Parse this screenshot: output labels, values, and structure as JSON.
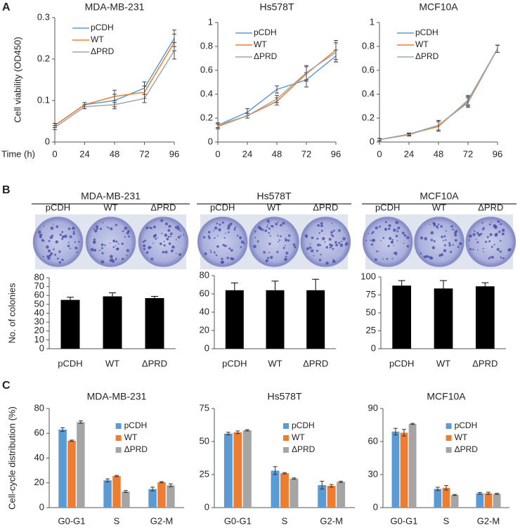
{
  "panel_labels": [
    "A",
    "B",
    "C"
  ],
  "colony_panels": [
    {
      "title": "MDA-MB-231",
      "labels": [
        "pCDH",
        "WT",
        "ΔPRD"
      ]
    },
    {
      "title": "Hs578T",
      "labels": [
        "pCDH",
        "WT",
        "ΔPRD"
      ]
    },
    {
      "title": "MCF10A",
      "labels": [
        "pCDH",
        "WT",
        "ΔPRD"
      ]
    }
  ],
  "chart_data": [
    {
      "type": "line",
      "title": "MDA-MB-231",
      "xlabel": "Time (h)",
      "ylabel": "Cell viability (OD450)",
      "x": [
        0,
        24,
        48,
        72,
        96
      ],
      "xlim": [
        0,
        96
      ],
      "xticks": [
        0,
        24,
        48,
        72,
        96
      ],
      "ylim": [
        0,
        0.3
      ],
      "yticks": [
        0,
        0.1,
        0.2,
        0.3
      ],
      "legend": "upper left",
      "series": [
        {
          "name": "pCDH",
          "color": "#5b9bd5",
          "values": [
            0.04,
            0.09,
            0.1,
            0.13,
            0.25
          ],
          "errors": [
            0.005,
            0.005,
            0.015,
            0.015,
            0.02
          ]
        },
        {
          "name": "WT",
          "color": "#ed7d31",
          "values": [
            0.04,
            0.09,
            0.11,
            0.12,
            0.24
          ],
          "errors": [
            0.005,
            0.005,
            0.015,
            0.015,
            0.02
          ]
        },
        {
          "name": "ΔPRD",
          "color": "#a5a5a5",
          "values": [
            0.035,
            0.085,
            0.09,
            0.105,
            0.22
          ],
          "errors": [
            0.005,
            0.005,
            0.01,
            0.01,
            0.02
          ]
        }
      ]
    },
    {
      "type": "line",
      "title": "Hs578T",
      "x": [
        0,
        24,
        48,
        72,
        96
      ],
      "xlim": [
        0,
        96
      ],
      "xticks": [
        0,
        24,
        48,
        72,
        96
      ],
      "ylim": [
        0,
        1
      ],
      "yticks": [
        0,
        0.2,
        0.4,
        0.6,
        0.8,
        1
      ],
      "legend": "upper left",
      "series": [
        {
          "name": "pCDH",
          "color": "#5b9bd5",
          "values": [
            0.14,
            0.25,
            0.44,
            0.52,
            0.72
          ],
          "errors": [
            0.02,
            0.03,
            0.03,
            0.06,
            0.05
          ]
        },
        {
          "name": "WT",
          "color": "#ed7d31",
          "values": [
            0.13,
            0.22,
            0.34,
            0.57,
            0.77
          ],
          "errors": [
            0.02,
            0.02,
            0.03,
            0.06,
            0.08
          ]
        },
        {
          "name": "ΔPRD",
          "color": "#a5a5a5",
          "values": [
            0.14,
            0.22,
            0.36,
            0.58,
            0.75
          ],
          "errors": [
            0.02,
            0.02,
            0.03,
            0.06,
            0.08
          ]
        }
      ]
    },
    {
      "type": "line",
      "title": "MCF10A",
      "x": [
        0,
        24,
        48,
        72,
        96
      ],
      "xlim": [
        0,
        96
      ],
      "xticks": [
        0,
        24,
        48,
        72,
        96
      ],
      "ylim": [
        0,
        1
      ],
      "yticks": [
        0,
        0.2,
        0.4,
        0.6,
        0.8,
        1
      ],
      "legend": "upper left",
      "series": [
        {
          "name": "pCDH",
          "color": "#5b9bd5",
          "values": [
            0.02,
            0.065,
            0.14,
            0.33,
            0.78
          ],
          "errors": [
            0.01,
            0.01,
            0.04,
            0.04,
            0.03
          ]
        },
        {
          "name": "WT",
          "color": "#ed7d31",
          "values": [
            0.02,
            0.065,
            0.13,
            0.35,
            0.78
          ],
          "errors": [
            0.01,
            0.01,
            0.04,
            0.04,
            0.03
          ]
        },
        {
          "name": "ΔPRD",
          "color": "#a5a5a5",
          "values": [
            0.02,
            0.06,
            0.14,
            0.34,
            0.78
          ],
          "errors": [
            0.01,
            0.01,
            0.04,
            0.04,
            0.03
          ]
        }
      ]
    },
    {
      "type": "bar",
      "ylabel": "No. of colonies",
      "categories": [
        "pCDH",
        "WT",
        "ΔPRD"
      ],
      "values": [
        55,
        59,
        57
      ],
      "errors": [
        3,
        4,
        2
      ],
      "color": "#000000",
      "ylim": [
        0,
        80
      ],
      "yticks": [
        0,
        10,
        20,
        30,
        40,
        50,
        60,
        70,
        80
      ]
    },
    {
      "type": "bar",
      "categories": [
        "pCDH",
        "WT",
        "ΔPRD"
      ],
      "values": [
        64,
        64,
        64
      ],
      "errors": [
        8,
        10,
        12
      ],
      "color": "#000000",
      "ylim": [
        0,
        80
      ],
      "yticks": [
        0,
        20,
        40,
        60,
        80
      ]
    },
    {
      "type": "bar",
      "categories": [
        "pCDH",
        "WT",
        "ΔPRD"
      ],
      "values": [
        88,
        84,
        87
      ],
      "errors": [
        7,
        11,
        5
      ],
      "color": "#000000",
      "ylim": [
        0,
        100
      ],
      "yticks": [
        0,
        25,
        50,
        75,
        100
      ]
    },
    {
      "type": "bar",
      "title": "MDA-MB-231",
      "ylabel": "Cell-cycle distribution (%)",
      "categories": [
        "G0-G1",
        "S",
        "G2-M"
      ],
      "ylim": [
        0,
        80
      ],
      "yticks": [
        0,
        20,
        40,
        60,
        80
      ],
      "legend": "upper right",
      "series": [
        {
          "name": "pCDH",
          "color": "#5b9bd5",
          "values": [
            63,
            22,
            15
          ],
          "errors": [
            1.5,
            1.2,
            1.5
          ]
        },
        {
          "name": "WT",
          "color": "#ed7d31",
          "values": [
            54,
            25.5,
            20.5
          ],
          "errors": [
            0.5,
            0.5,
            0.5
          ]
        },
        {
          "name": "ΔPRD",
          "color": "#a5a5a5",
          "values": [
            69,
            13,
            18
          ],
          "errors": [
            1,
            0.8,
            1.2
          ]
        }
      ]
    },
    {
      "type": "bar",
      "title": "Hs578T",
      "categories": [
        "G0-G1",
        "S",
        "G2-M"
      ],
      "ylim": [
        0,
        75
      ],
      "yticks": [
        0,
        25,
        50,
        75
      ],
      "legend": "upper right",
      "series": [
        {
          "name": "pCDH",
          "color": "#5b9bd5",
          "values": [
            56,
            28,
            17
          ],
          "errors": [
            1,
            3,
            3
          ]
        },
        {
          "name": "WT",
          "color": "#ed7d31",
          "values": [
            57,
            26,
            16.5
          ],
          "errors": [
            1,
            0.5,
            1
          ]
        },
        {
          "name": "ΔPRD",
          "color": "#a5a5a5",
          "values": [
            58.5,
            22,
            19.5
          ],
          "errors": [
            0.5,
            0.5,
            0.5
          ]
        }
      ]
    },
    {
      "type": "bar",
      "title": "MCF10A",
      "categories": [
        "G0-G1",
        "S",
        "G2-M"
      ],
      "ylim": [
        0,
        90
      ],
      "yticks": [
        0,
        30,
        60,
        90
      ],
      "legend": "upper right",
      "series": [
        {
          "name": "pCDH",
          "color": "#5b9bd5",
          "values": [
            69,
            17,
            13
          ],
          "errors": [
            3,
            1.5,
            0.8
          ]
        },
        {
          "name": "WT",
          "color": "#ed7d31",
          "values": [
            68,
            18,
            13
          ],
          "errors": [
            3,
            2,
            1
          ]
        },
        {
          "name": "ΔPRD",
          "color": "#a5a5a5",
          "values": [
            76,
            11.5,
            12.5
          ],
          "errors": [
            0.5,
            0.5,
            0.5
          ]
        }
      ]
    }
  ]
}
